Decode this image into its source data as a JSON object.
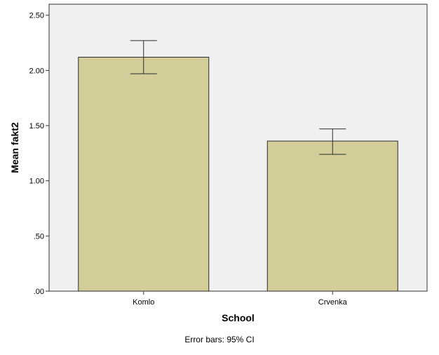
{
  "chart_data": {
    "type": "bar",
    "categories": [
      "Komlo",
      "Crvenka"
    ],
    "values": [
      2.12,
      1.36
    ],
    "error_bars": {
      "lower": [
        1.97,
        1.24
      ],
      "upper": [
        2.27,
        1.47
      ]
    },
    "title": "",
    "xlabel": "School",
    "ylabel": "Mean fakt2",
    "ylim": [
      0,
      2.6
    ],
    "yticks": [
      0,
      0.5,
      1.0,
      1.5,
      2.0,
      2.5
    ],
    "ytick_labels": [
      ".00",
      ".50",
      "1.00",
      "1.50",
      "2.00",
      "2.50"
    ],
    "footnote": "Error bars: 95% CI",
    "grid": false,
    "colors": {
      "bar_fill": "#d3ce99",
      "bar_stroke": "#2b2b2b",
      "plot_background": "#f0f0f0",
      "axis": "#333333",
      "text": "#000000"
    }
  }
}
